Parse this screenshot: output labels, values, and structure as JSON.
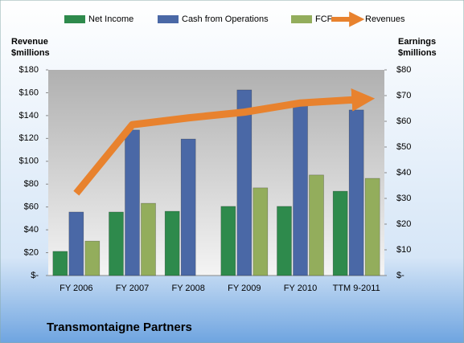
{
  "chart_data": {
    "type": "bar",
    "title": "Transmontaigne Partners",
    "y_label": [
      "Revenue",
      "$millions"
    ],
    "y2_label": [
      "Earnings",
      "$millions"
    ],
    "categories": [
      "FY 2006",
      "FY 2007",
      "FY 2008",
      "FY 2009",
      "FY 2010",
      "TTM 9-2011"
    ],
    "series": [
      {
        "name": "Net Income",
        "color": "#2e8a4c",
        "axis": "y2",
        "values": [
          9.4,
          24.7,
          25,
          26.9,
          26.9,
          32.8
        ]
      },
      {
        "name": "Cash from Operations",
        "color": "#4a68a6",
        "axis": "y2",
        "values": [
          24.7,
          56.6,
          53.1,
          72.2,
          66.3,
          64.4
        ]
      },
      {
        "name": "FCF",
        "color": "#93ad5c",
        "axis": "y2",
        "values": [
          13.4,
          28.1,
          null,
          34.1,
          39.1,
          37.8
        ]
      },
      {
        "name": "Revenues",
        "color": "#e8822e",
        "type": "line",
        "values": [
          72,
          132,
          138,
          143,
          151,
          154
        ]
      }
    ],
    "ylim": [
      0,
      180
    ],
    "yticks": [
      {
        "value": 0,
        "label": "$-"
      },
      {
        "value": 20,
        "label": "$20"
      },
      {
        "value": 40,
        "label": "$40"
      },
      {
        "value": 60,
        "label": "$60"
      },
      {
        "value": 80,
        "label": "$80"
      },
      {
        "value": 100,
        "label": "$100"
      },
      {
        "value": 120,
        "label": "$120"
      },
      {
        "value": 140,
        "label": "$140"
      },
      {
        "value": 160,
        "label": "$160"
      },
      {
        "value": 180,
        "label": "$180"
      }
    ],
    "y2lim": [
      0,
      80
    ],
    "y2ticks": [
      {
        "value": 0,
        "label": "$-"
      },
      {
        "value": 10,
        "label": "$10"
      },
      {
        "value": 20,
        "label": "$20"
      },
      {
        "value": 30,
        "label": "$30"
      },
      {
        "value": 40,
        "label": "$40"
      },
      {
        "value": 50,
        "label": "$50"
      },
      {
        "value": 60,
        "label": "$60"
      },
      {
        "value": 70,
        "label": "$70"
      },
      {
        "value": 80,
        "label": "$80"
      }
    ],
    "legend": "top"
  }
}
